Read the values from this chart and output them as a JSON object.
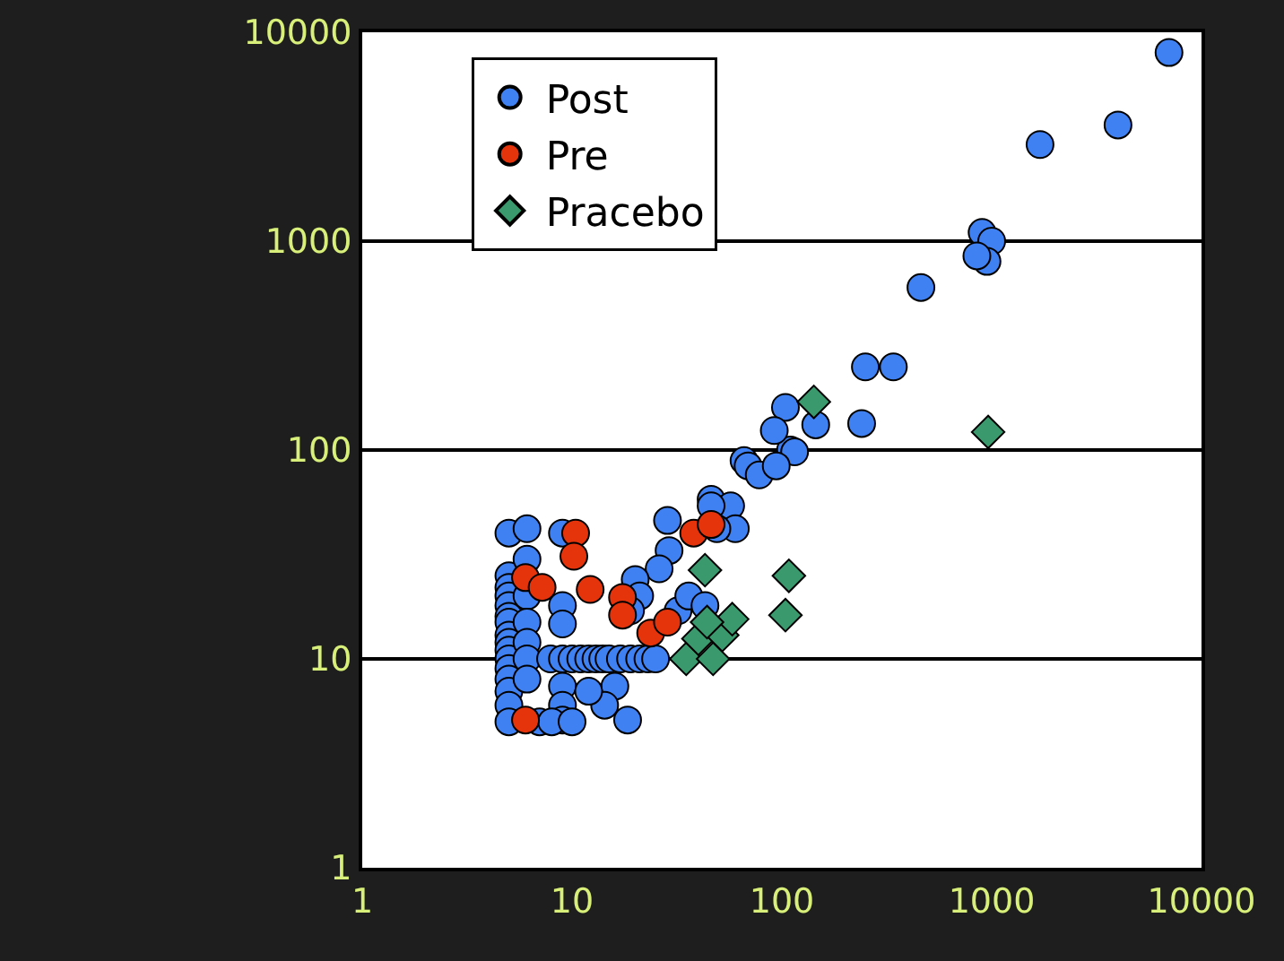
{
  "chart_data": {
    "type": "scatter",
    "log": "xy",
    "xlim": [
      1,
      10000
    ],
    "ylim": [
      1,
      10000
    ],
    "xticks": [
      1,
      10,
      100,
      1000,
      10000
    ],
    "yticks": [
      1,
      10,
      100,
      1000,
      10000
    ],
    "grid": "y",
    "legend": "top left",
    "series": [
      {
        "name": "Post",
        "color": "#3f80f2",
        "marker": "circle",
        "x": [
          7000,
          4000,
          1700,
          900,
          1000,
          950,
          850,
          460,
          340,
          250,
          240,
          145,
          104,
          110,
          92,
          115,
          66,
          46,
          69,
          78,
          94,
          57,
          46,
          60,
          49,
          28.5,
          29,
          26,
          20,
          21,
          19,
          32,
          36,
          43,
          5,
          5,
          5,
          5,
          5,
          5,
          5,
          5,
          5,
          5,
          5,
          5,
          5,
          5,
          5,
          5,
          6.1,
          6.1,
          6.1,
          6.1,
          6.1,
          6.1,
          6.1,
          9,
          9,
          9,
          9,
          9,
          9,
          7.9,
          9,
          10,
          11,
          12,
          13,
          14,
          15,
          17,
          19,
          21,
          23,
          25,
          16,
          18.4,
          14.3,
          7,
          8,
          10,
          12
        ],
        "values": [
          8000,
          3600,
          2900,
          1100,
          1000,
          800,
          850,
          600,
          250,
          250,
          134,
          132,
          160,
          100,
          124,
          98,
          89,
          58,
          84,
          76,
          84,
          54,
          54,
          42,
          42,
          46,
          33,
          27,
          24,
          20,
          17,
          17,
          20,
          18,
          40,
          25,
          22,
          20,
          18,
          16,
          15,
          13,
          12,
          11,
          10,
          9,
          8,
          7,
          6,
          5,
          42,
          30,
          20,
          15,
          12,
          10,
          8,
          40,
          18,
          14.7,
          7.4,
          6,
          5.1,
          10,
          10,
          10,
          10,
          10,
          10,
          10,
          10,
          10,
          10,
          10,
          10,
          10,
          7.4,
          5.1,
          6,
          5,
          5,
          5,
          7
        ]
      },
      {
        "name": "Pre",
        "color": "#e5330b",
        "marker": "circle",
        "x": [
          10.4,
          10.2,
          12.2,
          17.4,
          23.7,
          28.5,
          38,
          46,
          6,
          7.2,
          6,
          17.4
        ],
        "values": [
          40,
          31,
          21.5,
          19.7,
          13.3,
          15,
          40,
          44,
          24.5,
          22,
          5.1,
          16.2
        ]
      },
      {
        "name": "Pracebo",
        "color": "#3a9a6e",
        "marker": "diamond",
        "x": [
          43,
          108,
          104,
          142,
          962,
          35,
          47,
          40,
          52,
          58,
          44
        ],
        "values": [
          26.6,
          25,
          16.2,
          170,
          122,
          10,
          10,
          12.5,
          13,
          15.5,
          15
        ]
      }
    ]
  }
}
